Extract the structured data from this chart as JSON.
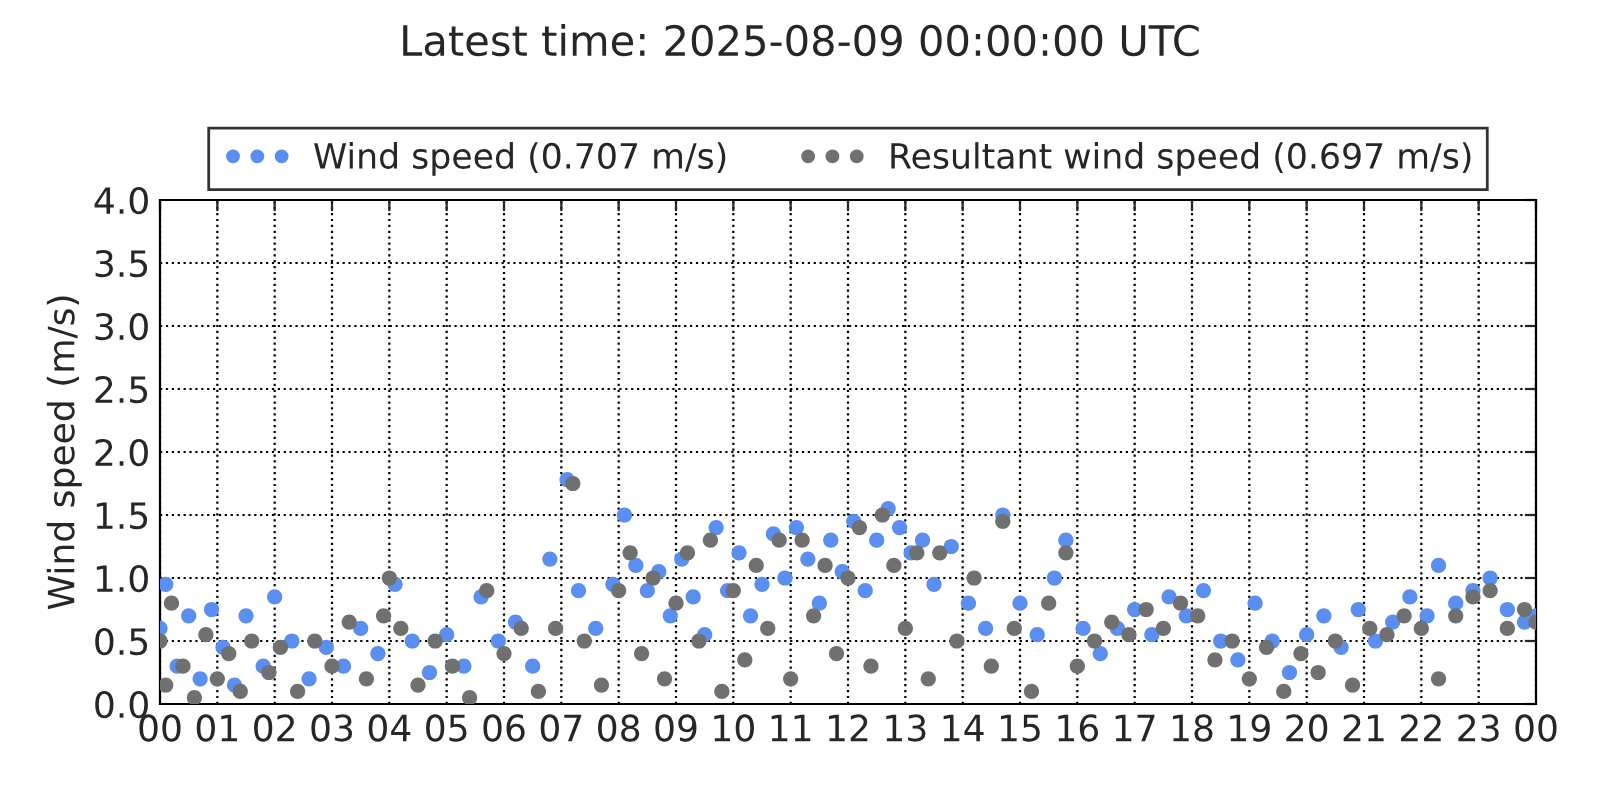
{
  "chart_data": {
    "type": "scatter",
    "title": "Latest time: 2025-08-09 00:00:00 UTC",
    "ylabel": "Wind speed (m/s)",
    "xlim": [
      0,
      24
    ],
    "xticks": [
      {
        "value": 0,
        "label": "00"
      },
      {
        "value": 1,
        "label": "01"
      },
      {
        "value": 2,
        "label": "02"
      },
      {
        "value": 3,
        "label": "03"
      },
      {
        "value": 4,
        "label": "04"
      },
      {
        "value": 5,
        "label": "05"
      },
      {
        "value": 6,
        "label": "06"
      },
      {
        "value": 7,
        "label": "07"
      },
      {
        "value": 8,
        "label": "08"
      },
      {
        "value": 9,
        "label": "09"
      },
      {
        "value": 10,
        "label": "10"
      },
      {
        "value": 11,
        "label": "11"
      },
      {
        "value": 12,
        "label": "12"
      },
      {
        "value": 13,
        "label": "13"
      },
      {
        "value": 14,
        "label": "14"
      },
      {
        "value": 15,
        "label": "15"
      },
      {
        "value": 16,
        "label": "16"
      },
      {
        "value": 17,
        "label": "17"
      },
      {
        "value": 18,
        "label": "18"
      },
      {
        "value": 19,
        "label": "19"
      },
      {
        "value": 20,
        "label": "20"
      },
      {
        "value": 21,
        "label": "21"
      },
      {
        "value": 22,
        "label": "22"
      },
      {
        "value": 23,
        "label": "23"
      },
      {
        "value": 24,
        "label": "00"
      }
    ],
    "ylim": [
      0,
      4
    ],
    "yticks": [
      {
        "value": 0,
        "label": "0.0"
      },
      {
        "value": 0.5,
        "label": "0.5"
      },
      {
        "value": 1,
        "label": "1.0"
      },
      {
        "value": 1.5,
        "label": "1.5"
      },
      {
        "value": 2,
        "label": "2.0"
      },
      {
        "value": 2.5,
        "label": "2.5"
      },
      {
        "value": 3,
        "label": "3.0"
      },
      {
        "value": 3.5,
        "label": "3.5"
      },
      {
        "value": 4,
        "label": "4.0"
      }
    ],
    "grid": true,
    "legend": "top",
    "marker": "circle",
    "series": [
      {
        "name": "Wind speed (0.707 m/s)",
        "color": "#5a8ef0",
        "x": [
          0.0,
          0.1,
          0.3,
          0.5,
          0.7,
          0.9,
          1.1,
          1.3,
          1.5,
          1.8,
          2.0,
          2.3,
          2.6,
          2.9,
          3.2,
          3.5,
          3.8,
          4.1,
          4.4,
          4.7,
          5.0,
          5.3,
          5.6,
          5.9,
          6.2,
          6.5,
          6.8,
          7.1,
          7.3,
          7.6,
          7.9,
          8.1,
          8.3,
          8.5,
          8.7,
          8.9,
          9.1,
          9.3,
          9.5,
          9.7,
          9.9,
          10.1,
          10.3,
          10.5,
          10.7,
          10.9,
          11.1,
          11.3,
          11.5,
          11.7,
          11.9,
          12.1,
          12.3,
          12.5,
          12.7,
          12.9,
          13.1,
          13.3,
          13.5,
          13.8,
          14.1,
          14.4,
          14.7,
          15.0,
          15.3,
          15.6,
          15.8,
          16.1,
          16.4,
          16.7,
          17.0,
          17.3,
          17.6,
          17.9,
          18.2,
          18.5,
          18.8,
          19.1,
          19.4,
          19.7,
          20.0,
          20.3,
          20.6,
          20.9,
          21.2,
          21.5,
          21.8,
          22.1,
          22.3,
          22.6,
          22.9,
          23.2,
          23.5,
          23.8,
          24.0
        ],
        "values": [
          0.6,
          0.95,
          0.3,
          0.7,
          0.2,
          0.75,
          0.45,
          0.15,
          0.7,
          0.3,
          0.85,
          0.5,
          0.2,
          0.45,
          0.3,
          0.6,
          0.4,
          0.95,
          0.5,
          0.25,
          0.55,
          0.3,
          0.85,
          0.5,
          0.65,
          0.3,
          1.15,
          1.78,
          0.9,
          0.6,
          0.95,
          1.5,
          1.1,
          0.9,
          1.05,
          0.7,
          1.15,
          0.85,
          0.55,
          1.4,
          0.9,
          1.2,
          0.7,
          0.95,
          1.35,
          1.0,
          1.4,
          1.15,
          0.8,
          1.3,
          1.05,
          1.45,
          0.9,
          1.3,
          1.55,
          1.4,
          1.2,
          1.3,
          0.95,
          1.25,
          0.8,
          0.6,
          1.5,
          0.8,
          0.55,
          1.0,
          1.3,
          0.6,
          0.4,
          0.6,
          0.75,
          0.55,
          0.85,
          0.7,
          0.9,
          0.5,
          0.35,
          0.8,
          0.5,
          0.25,
          0.55,
          0.7,
          0.45,
          0.75,
          0.5,
          0.65,
          0.85,
          0.7,
          1.1,
          0.8,
          0.9,
          1.0,
          0.75,
          0.65,
          0.7
        ]
      },
      {
        "name": "Resultant wind speed (0.697 m/s)",
        "color": "#707070",
        "x": [
          0.0,
          0.1,
          0.2,
          0.4,
          0.6,
          0.8,
          1.0,
          1.2,
          1.4,
          1.6,
          1.9,
          2.1,
          2.4,
          2.7,
          3.0,
          3.3,
          3.6,
          3.9,
          4.0,
          4.2,
          4.5,
          4.8,
          5.1,
          5.4,
          5.7,
          6.0,
          6.3,
          6.6,
          6.9,
          7.2,
          7.4,
          7.7,
          8.0,
          8.2,
          8.4,
          8.6,
          8.8,
          9.0,
          9.2,
          9.4,
          9.6,
          9.8,
          10.0,
          10.2,
          10.4,
          10.6,
          10.8,
          11.0,
          11.2,
          11.4,
          11.6,
          11.8,
          12.0,
          12.2,
          12.4,
          12.6,
          12.8,
          13.0,
          13.2,
          13.4,
          13.6,
          13.9,
          14.2,
          14.5,
          14.7,
          14.9,
          15.2,
          15.5,
          15.8,
          16.0,
          16.3,
          16.6,
          16.9,
          17.2,
          17.5,
          17.8,
          18.1,
          18.4,
          18.7,
          19.0,
          19.3,
          19.6,
          19.9,
          20.2,
          20.5,
          20.8,
          21.1,
          21.4,
          21.7,
          22.0,
          22.3,
          22.6,
          22.9,
          23.2,
          23.5,
          23.8,
          24.0
        ],
        "values": [
          0.5,
          0.15,
          0.8,
          0.3,
          0.05,
          0.55,
          0.2,
          0.4,
          0.1,
          0.5,
          0.25,
          0.45,
          0.1,
          0.5,
          0.3,
          0.65,
          0.2,
          0.7,
          1.0,
          0.6,
          0.15,
          0.5,
          0.3,
          0.05,
          0.9,
          0.4,
          0.6,
          0.1,
          0.6,
          1.75,
          0.5,
          0.15,
          0.9,
          1.2,
          0.4,
          1.0,
          0.2,
          0.8,
          1.2,
          0.5,
          1.3,
          0.1,
          0.9,
          0.35,
          1.1,
          0.6,
          1.3,
          0.2,
          1.3,
          0.7,
          1.1,
          0.4,
          1.0,
          1.4,
          0.3,
          1.5,
          1.1,
          0.6,
          1.2,
          0.2,
          1.2,
          0.5,
          1.0,
          0.3,
          1.45,
          0.6,
          0.1,
          0.8,
          1.2,
          0.3,
          0.5,
          0.65,
          0.55,
          0.75,
          0.6,
          0.8,
          0.7,
          0.35,
          0.5,
          0.2,
          0.45,
          0.1,
          0.4,
          0.25,
          0.5,
          0.15,
          0.6,
          0.55,
          0.7,
          0.6,
          0.2,
          0.7,
          0.85,
          0.9,
          0.6,
          0.75,
          0.65
        ]
      }
    ]
  }
}
